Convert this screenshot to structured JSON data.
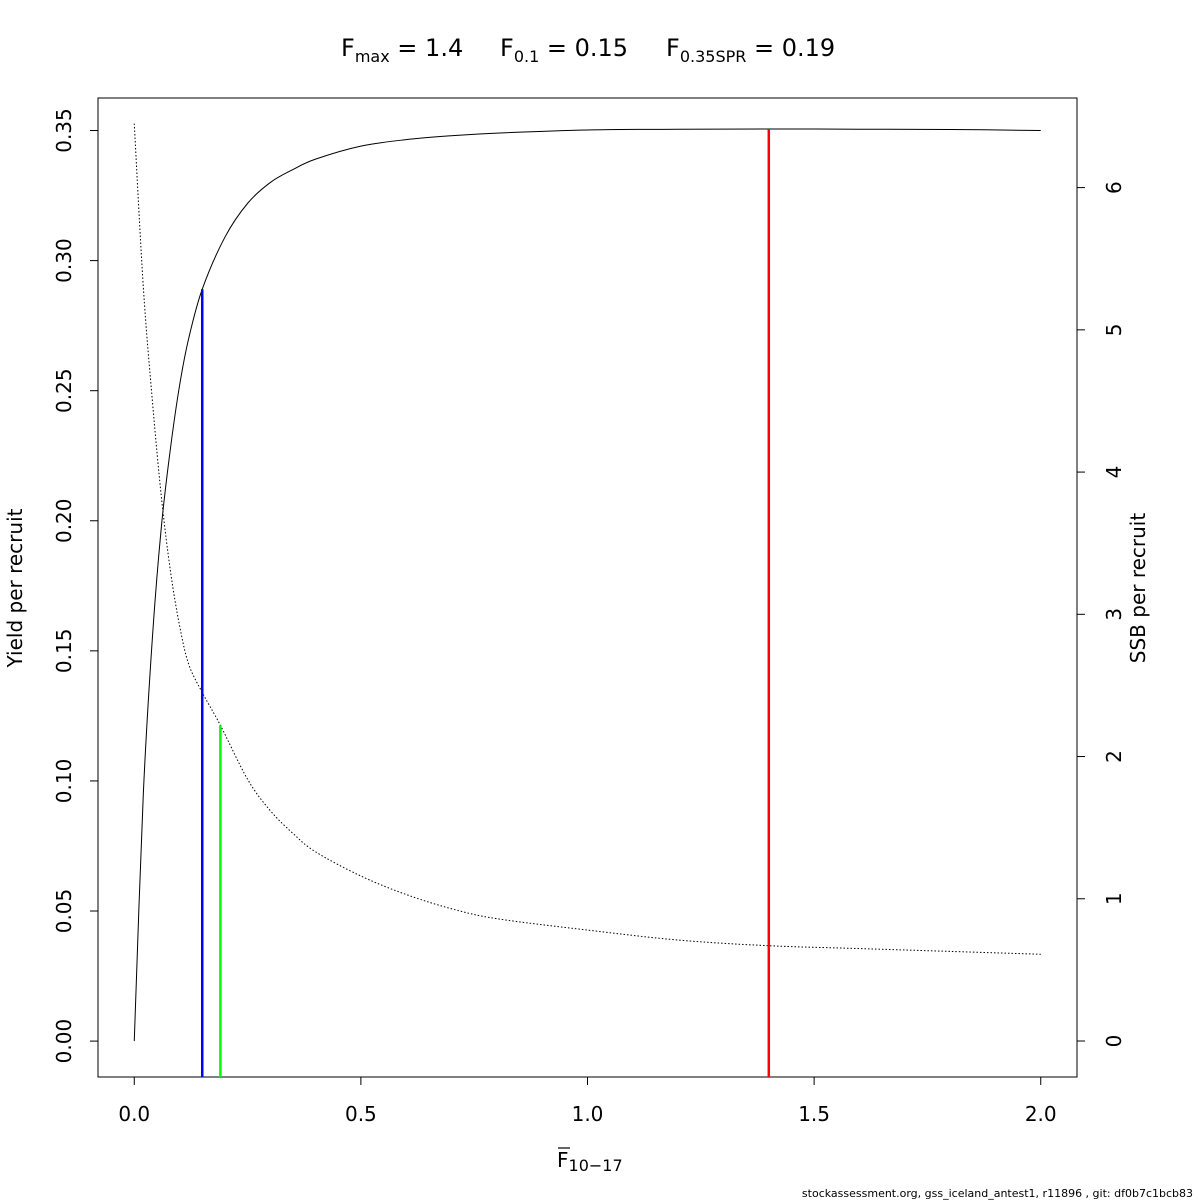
{
  "title": {
    "fmax": {
      "symbol": "F",
      "subscript": "max",
      "equals": " = ",
      "value": "1.4"
    },
    "f01": {
      "symbol": "F",
      "subscript": "0.1",
      "equals": " = ",
      "value": "0.15"
    },
    "f035spr": {
      "symbol": "F",
      "subscript": "0.35SPR",
      "equals": " = ",
      "value": "0.19"
    }
  },
  "footer": "stockassessment.org, gss_iceland_antest1, r11896 , git: df0b7c1bcb83",
  "chart_data": {
    "type": "line",
    "xlabel": {
      "symbol": "F",
      "subscript": "10−17",
      "overline": true
    },
    "ylabel_left": "Yield per recruit",
    "ylabel_right": "SSB per recruit",
    "xlim": [
      -0.08,
      2.08
    ],
    "ylim_left": [
      -0.0138,
      0.3625
    ],
    "ylim_right": [
      -0.253,
      6.63
    ],
    "x_ticks": [
      0.0,
      0.5,
      1.0,
      1.5,
      2.0
    ],
    "x_tick_labels": [
      "0.0",
      "0.5",
      "1.0",
      "1.5",
      "2.0"
    ],
    "y_left_ticks": [
      0.0,
      0.05,
      0.1,
      0.15,
      0.2,
      0.25,
      0.3,
      0.35
    ],
    "y_left_tick_labels": [
      "0.00",
      "0.05",
      "0.10",
      "0.15",
      "0.20",
      "0.25",
      "0.30",
      "0.35"
    ],
    "y_right_ticks": [
      0,
      1,
      2,
      3,
      4,
      5,
      6
    ],
    "y_right_tick_labels": [
      "0",
      "1",
      "2",
      "3",
      "4",
      "5",
      "6"
    ],
    "grid": false,
    "series": [
      {
        "axis": "left",
        "style": "solid",
        "color": "#000000",
        "x": [
          0.0,
          0.02,
          0.04,
          0.06,
          0.08,
          0.1,
          0.12,
          0.15,
          0.2,
          0.25,
          0.3,
          0.35,
          0.4,
          0.5,
          0.6,
          0.7,
          0.8,
          1.0,
          1.2,
          1.4,
          1.6,
          1.8,
          2.0
        ],
        "y": [
          0.0,
          0.095,
          0.155,
          0.198,
          0.228,
          0.252,
          0.27,
          0.289,
          0.309,
          0.322,
          0.33,
          0.335,
          0.339,
          0.344,
          0.3465,
          0.348,
          0.349,
          0.3502,
          0.3505,
          0.3506,
          0.3505,
          0.3504,
          0.35
        ]
      },
      {
        "axis": "right",
        "style": "dotted",
        "color": "#000000",
        "x": [
          0.0,
          0.02,
          0.04,
          0.06,
          0.08,
          0.1,
          0.12,
          0.15,
          0.19,
          0.25,
          0.3,
          0.35,
          0.4,
          0.5,
          0.6,
          0.7,
          0.8,
          1.0,
          1.2,
          1.4,
          1.6,
          1.8,
          2.0
        ],
        "y": [
          6.45,
          5.3,
          4.5,
          3.82,
          3.3,
          2.92,
          2.65,
          2.45,
          2.22,
          1.84,
          1.62,
          1.46,
          1.33,
          1.16,
          1.03,
          0.93,
          0.86,
          0.78,
          0.71,
          0.67,
          0.65,
          0.63,
          0.61
        ]
      }
    ],
    "reference_lines": [
      {
        "name": "Fmax",
        "x": 1.4,
        "y_top": 0.3506,
        "axis": "left",
        "color": "#ff0000"
      },
      {
        "name": "F0.1",
        "x": 0.15,
        "y_top": 0.289,
        "axis": "left",
        "color": "#0000ff"
      },
      {
        "name": "F0.35SPR",
        "x": 0.19,
        "y_top": 2.22,
        "axis": "right",
        "color": "#00ff00"
      }
    ]
  }
}
